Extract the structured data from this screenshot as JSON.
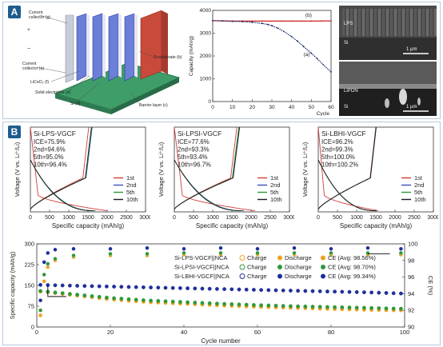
{
  "panel_a": {
    "label": "A",
    "schematic_labels": [
      {
        "text": "Current",
        "color": "#222"
      },
      {
        "text": "collector (g)",
        "color": "#222"
      },
      {
        "text": "Current",
        "color": "#222"
      },
      {
        "text": "collector (a)",
        "color": "#222"
      },
      {
        "text": "LiCoO₂ (f)",
        "color": "#222"
      },
      {
        "text": "Solid electrolyte (e)",
        "color": "#222"
      },
      {
        "text": "Si (d)",
        "color": "#222"
      },
      {
        "text": "Si-substrate (b)",
        "color": "#222"
      },
      {
        "text": "Barrier layer (c)",
        "color": "#222"
      },
      {
        "text": "+",
        "color": "#222"
      },
      {
        "text": "−",
        "color": "#222"
      }
    ],
    "sem_top": {
      "labels": [
        "LPS",
        "Si"
      ],
      "scale": "1 μm"
    },
    "sem_bottom": {
      "labels": [
        "LiPON",
        "Si"
      ],
      "scale": "1 μm"
    }
  },
  "panel_b": {
    "label": "B"
  },
  "chart_data": [
    {
      "id": "capacity_vs_cycle",
      "type": "line",
      "xlabel": "Cycle",
      "ylabel": "Capacity (mAh/g)",
      "xlim": [
        0,
        60
      ],
      "ylim": [
        0,
        4000
      ],
      "xticks": [
        0,
        10,
        20,
        30,
        40,
        50,
        60
      ],
      "yticks": [
        0,
        1000,
        2000,
        3000,
        4000
      ],
      "series": [
        {
          "name": "(b)",
          "color": "#cc2222",
          "x": [
            0,
            5,
            10,
            15,
            20,
            25,
            30,
            35,
            40,
            45,
            50,
            55,
            60
          ],
          "y": [
            3550,
            3540,
            3530,
            3530,
            3530,
            3530,
            3530,
            3530,
            3530,
            3530,
            3530,
            3535,
            3540
          ]
        },
        {
          "name": "(a)",
          "color": "#1a2a66",
          "x": [
            0,
            5,
            10,
            15,
            20,
            25,
            28,
            30,
            33,
            36,
            40,
            43,
            46,
            50,
            53,
            56,
            60
          ],
          "y": [
            3550,
            3540,
            3520,
            3510,
            3480,
            3430,
            3380,
            3330,
            3220,
            3080,
            2850,
            2650,
            2420,
            2120,
            1880,
            1620,
            1300
          ]
        }
      ]
    },
    {
      "id": "si_lps_vgcf",
      "type": "line",
      "title": "Si-LPS-VGCF",
      "annotations": [
        "ICE=75.9%",
        "2nd=94.6%",
        "5th=95.0%",
        "10th=96.4%"
      ],
      "xlabel": "Specific capacity (mAh/g)",
      "ylabel": "Voltage (V vs. Li⁺/Li)",
      "xlim": [
        0,
        3000
      ],
      "ylim": [
        0,
        1.5
      ],
      "xticks": [
        0,
        500,
        1000,
        1500,
        2000,
        2500,
        3000
      ],
      "legend": [
        "1st",
        "2nd",
        "5th",
        "10th"
      ],
      "legend_colors": [
        "#d43a3a",
        "#3b4cc0",
        "#2c9a3a",
        "#1b1b1b"
      ],
      "discharge_capacity": [
        2000,
        1700,
        1680,
        1650
      ],
      "charge_capacity": [
        1520,
        1610,
        1600,
        1590
      ]
    },
    {
      "id": "si_lpsi_vgcf",
      "type": "line",
      "title": "Si-LPSI-VGCF",
      "annotations": [
        "ICE=77.6%",
        "2nd=93.3%",
        "5th=93.4%",
        "10th=96.7%"
      ],
      "xlabel": "Specific capacity (mAh/g)",
      "ylabel": "Voltage (V vs. Li⁺/Li)",
      "xlim": [
        0,
        3000
      ],
      "ylim": [
        0,
        1.5
      ],
      "xticks": [
        0,
        500,
        1000,
        1500,
        2000,
        2500,
        3000
      ],
      "legend": [
        "1st",
        "2nd",
        "5th",
        "10th"
      ],
      "legend_colors": [
        "#d43a3a",
        "#3b4cc0",
        "#2c9a3a",
        "#1b1b1b"
      ],
      "discharge_capacity": [
        2100,
        1820,
        1790,
        1760
      ],
      "charge_capacity": [
        1630,
        1700,
        1680,
        1700
      ]
    },
    {
      "id": "si_lbhi_vgcf",
      "type": "line",
      "title": "Si-LBHI-VGCF",
      "annotations": [
        "ICE=96.2%",
        "2nd=99.3%",
        "5th=100.0%",
        "10th=100.2%"
      ],
      "xlabel": "Specific capacity (mAh/g)",
      "ylabel": "Voltage (V vs. Li⁺/Li)",
      "xlim": [
        0,
        3000
      ],
      "ylim": [
        0,
        1.5
      ],
      "xticks": [
        0,
        500,
        1000,
        1500,
        2000,
        2500,
        3000
      ],
      "legend": [
        "1st",
        "2nd",
        "5th",
        "10th"
      ],
      "legend_colors": [
        "#d43a3a",
        "#3b4cc0",
        "#2c9a3a",
        "#1b1b1b"
      ],
      "discharge_capacity": [
        1560,
        1520,
        1510,
        1505
      ],
      "charge_capacity": [
        1500,
        1510,
        1510,
        1508
      ]
    },
    {
      "id": "cycling_nca",
      "type": "scatter",
      "xlabel": "Cycle number",
      "ylabel": "Specific capacity (mAh/g)",
      "y2label": "CE (%)",
      "xlim": [
        0,
        100
      ],
      "ylim": [
        0,
        300
      ],
      "y2lim": [
        90,
        100
      ],
      "xticks": [
        0,
        20,
        40,
        60,
        80,
        100
      ],
      "yticks": [
        0,
        75,
        150,
        225,
        300
      ],
      "y2ticks": [
        90,
        92,
        94,
        96,
        98,
        100
      ],
      "legend_rows": [
        {
          "label": "Si-LPS-VGCF||NCA",
          "charge": "Charge",
          "discharge": "Discharge",
          "ce": "CE (Avg: 98.56%)",
          "color": "#f0a020"
        },
        {
          "label": "Si-LPSI-VGCF||NCA",
          "charge": "Charge",
          "discharge": "Discharge",
          "ce": "CE (Avg: 98.70%)",
          "color": "#2e9a3a"
        },
        {
          "label": "Si-LBHI-VGCF||NCA",
          "charge": "Charge",
          "discharge": "Discharge",
          "ce": "CE (Avg: 99.34%)",
          "color": "#1f2f9a"
        }
      ],
      "series": [
        {
          "name": "Si-LPS-VGCF||NCA",
          "color": "#f0a020",
          "capacity_x": [
            1,
            10,
            20,
            30,
            40,
            50,
            60,
            70,
            80,
            90,
            99
          ],
          "capacity_y": [
            128,
            115,
            100,
            90,
            84,
            78,
            73,
            69,
            65,
            62,
            60
          ],
          "ce_x": [
            1,
            2,
            3,
            5,
            10,
            20,
            30,
            40,
            50,
            60,
            70,
            80,
            90,
            99
          ],
          "ce_y": [
            91.4,
            95.5,
            97.2,
            98.0,
            98.4,
            98.6,
            98.6,
            98.7,
            98.7,
            98.7,
            98.7,
            98.7,
            98.7,
            98.7
          ]
        },
        {
          "name": "Si-LPSI-VGCF||NCA",
          "color": "#2e9a3a",
          "capacity_x": [
            1,
            10,
            20,
            30,
            40,
            50,
            60,
            70,
            80,
            90,
            99
          ],
          "capacity_y": [
            130,
            118,
            105,
            96,
            90,
            84,
            79,
            75,
            72,
            69,
            66
          ],
          "ce_x": [
            1,
            2,
            3,
            5,
            10,
            20,
            30,
            40,
            50,
            60,
            70,
            80,
            90,
            99
          ],
          "ce_y": [
            92.0,
            96.3,
            97.6,
            98.2,
            98.6,
            98.8,
            98.8,
            98.9,
            98.9,
            98.9,
            98.9,
            98.9,
            98.9,
            98.9
          ]
        },
        {
          "name": "Si-LBHI-VGCF||NCA",
          "color": "#1f2f9a",
          "capacity_x": [
            1,
            10,
            20,
            30,
            40,
            50,
            60,
            70,
            80,
            90,
            99
          ],
          "capacity_y": [
            152,
            149,
            146,
            143,
            140,
            137,
            134,
            131,
            128,
            125,
            121
          ],
          "ce_x": [
            1,
            2,
            3,
            5,
            10,
            20,
            30,
            40,
            50,
            60,
            70,
            80,
            90,
            99
          ],
          "ce_y": [
            93.2,
            97.8,
            98.9,
            99.3,
            99.4,
            99.4,
            99.5,
            99.4,
            99.5,
            99.4,
            99.5,
            99.4,
            99.5,
            99.4
          ]
        }
      ]
    }
  ]
}
